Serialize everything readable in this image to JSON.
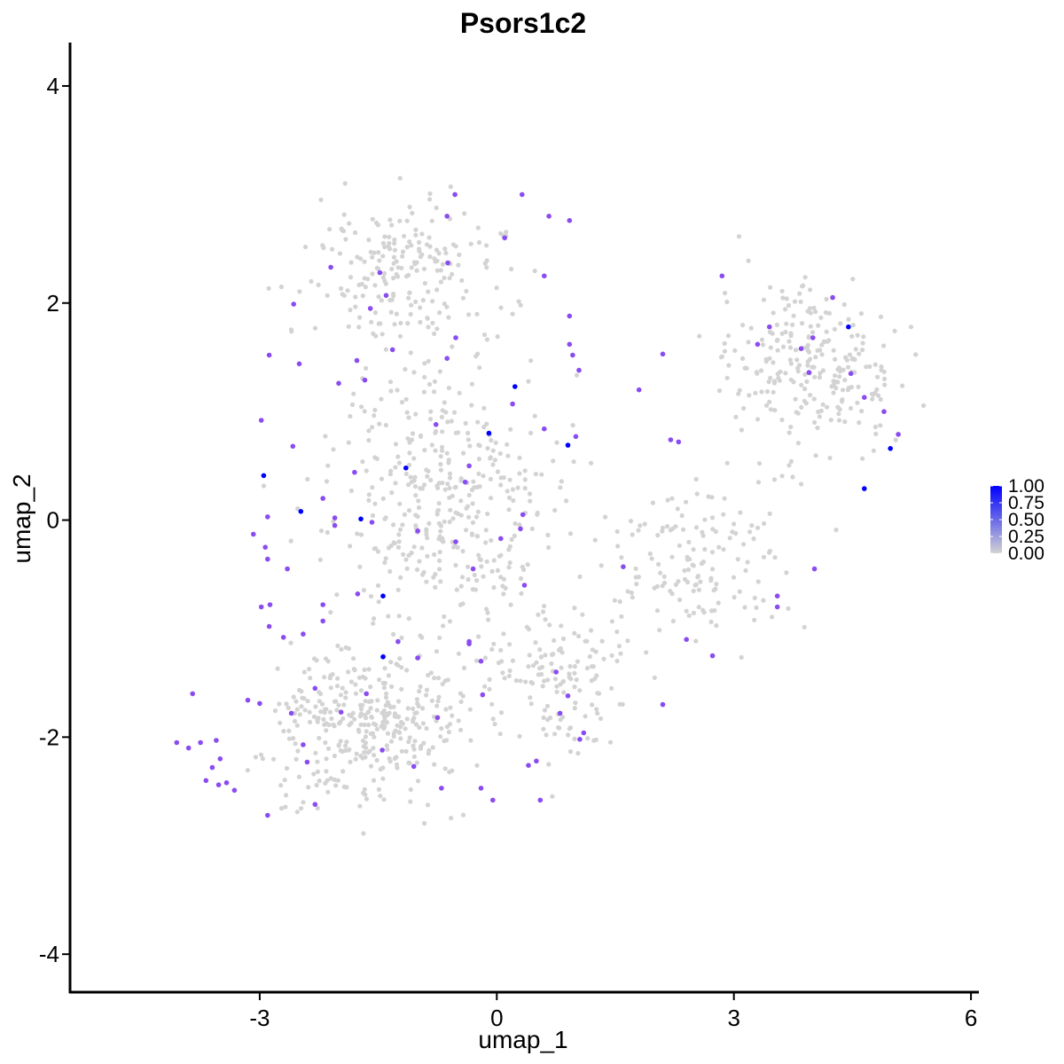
{
  "chart_data": {
    "type": "scatter",
    "title": "Psors1c2",
    "xlabel": "umap_1",
    "ylabel": "umap_2",
    "xlim": [
      -5.4,
      6.1
    ],
    "ylim": [
      -4.35,
      4.4
    ],
    "x_ticks": [
      -3,
      0,
      3,
      6
    ],
    "y_ticks": [
      -4,
      -2,
      0,
      2,
      4
    ],
    "grid": false,
    "legend": {
      "placement": "right",
      "type": "colorbar",
      "labels": [
        "1.00",
        "0.75",
        "0.50",
        "0.25",
        "0.00"
      ],
      "low_color": "#d3d3d3",
      "high_color": "#0000ff"
    },
    "background_point_color": "#d3d3d3",
    "background_point_count": 1500,
    "background_regions": [
      {
        "center": [
          -1.6,
          -1.9
        ],
        "spread": [
          1.2,
          0.65
        ],
        "weight": 0.22
      },
      {
        "center": [
          -0.6,
          0.2
        ],
        "spread": [
          1.3,
          1.2
        ],
        "weight": 0.26
      },
      {
        "center": [
          -1.1,
          2.3
        ],
        "spread": [
          1.1,
          0.6
        ],
        "weight": 0.14
      },
      {
        "center": [
          3.9,
          1.4
        ],
        "spread": [
          1.0,
          0.7
        ],
        "weight": 0.17
      },
      {
        "center": [
          2.5,
          -0.4
        ],
        "spread": [
          1.0,
          0.6
        ],
        "weight": 0.11
      },
      {
        "center": [
          0.8,
          -1.5
        ],
        "spread": [
          0.9,
          0.7
        ],
        "weight": 0.1
      }
    ],
    "expressed_points": [
      {
        "x": 0.23,
        "y": 1.23,
        "value": 1.0
      },
      {
        "x": -0.1,
        "y": 0.8,
        "value": 1.0
      },
      {
        "x": 0.9,
        "y": 0.69,
        "value": 1.0
      },
      {
        "x": -1.15,
        "y": 0.48,
        "value": 0.95
      },
      {
        "x": -2.95,
        "y": 0.41,
        "value": 0.95
      },
      {
        "x": -2.48,
        "y": 0.08,
        "value": 1.0
      },
      {
        "x": -1.72,
        "y": 0.01,
        "value": 1.0
      },
      {
        "x": -1.44,
        "y": -0.7,
        "value": 1.0
      },
      {
        "x": -1.44,
        "y": -1.26,
        "value": 1.0
      },
      {
        "x": 4.45,
        "y": 1.78,
        "value": 1.0
      },
      {
        "x": 4.98,
        "y": 0.66,
        "value": 1.0
      },
      {
        "x": 4.65,
        "y": 0.29,
        "value": 1.0
      },
      {
        "x": -2.1,
        "y": 2.33,
        "value": 0.7
      },
      {
        "x": -1.48,
        "y": 2.28,
        "value": 0.7
      },
      {
        "x": -2.57,
        "y": 1.99,
        "value": 0.7
      },
      {
        "x": -1.6,
        "y": 1.95,
        "value": 0.65
      },
      {
        "x": -1.32,
        "y": 1.57,
        "value": 0.7
      },
      {
        "x": -1.77,
        "y": 1.47,
        "value": 0.7
      },
      {
        "x": -2.5,
        "y": 1.44,
        "value": 0.7
      },
      {
        "x": -2.0,
        "y": 1.26,
        "value": 0.7
      },
      {
        "x": -1.67,
        "y": 1.29,
        "value": 0.7
      },
      {
        "x": -2.88,
        "y": 1.52,
        "value": 0.7
      },
      {
        "x": -2.98,
        "y": 0.92,
        "value": 0.7
      },
      {
        "x": -2.58,
        "y": 0.68,
        "value": 0.7
      },
      {
        "x": -1.4,
        "y": 2.07,
        "value": 0.7
      },
      {
        "x": -0.63,
        "y": 2.8,
        "value": 0.7
      },
      {
        "x": -0.62,
        "y": 2.37,
        "value": 0.7
      },
      {
        "x": -0.53,
        "y": 3.0,
        "value": 0.7
      },
      {
        "x": 0.32,
        "y": 3.0,
        "value": 0.7
      },
      {
        "x": 0.66,
        "y": 2.8,
        "value": 0.7
      },
      {
        "x": 0.92,
        "y": 2.76,
        "value": 0.7
      },
      {
        "x": 0.1,
        "y": 2.6,
        "value": 0.7
      },
      {
        "x": 0.6,
        "y": 2.25,
        "value": 0.7
      },
      {
        "x": 0.92,
        "y": 1.88,
        "value": 0.7
      },
      {
        "x": 0.92,
        "y": 1.62,
        "value": 0.7
      },
      {
        "x": 0.96,
        "y": 1.52,
        "value": 0.7
      },
      {
        "x": 1.04,
        "y": 1.38,
        "value": 0.7
      },
      {
        "x": -0.52,
        "y": 1.68,
        "value": 0.7
      },
      {
        "x": -0.63,
        "y": 1.49,
        "value": 0.7
      },
      {
        "x": 0.2,
        "y": 1.07,
        "value": 0.7
      },
      {
        "x": -0.77,
        "y": 0.88,
        "value": 0.7
      },
      {
        "x": -0.35,
        "y": 0.5,
        "value": 0.7
      },
      {
        "x": -0.4,
        "y": 0.35,
        "value": 0.7
      },
      {
        "x": 0.3,
        "y": -0.08,
        "value": 0.7
      },
      {
        "x": 0.33,
        "y": 0.05,
        "value": 0.7
      },
      {
        "x": 0.05,
        "y": -0.17,
        "value": 0.7
      },
      {
        "x": -0.52,
        "y": -0.2,
        "value": 0.7
      },
      {
        "x": -1.0,
        "y": -0.1,
        "value": 0.7
      },
      {
        "x": -0.3,
        "y": -0.45,
        "value": 0.7
      },
      {
        "x": 0.6,
        "y": 0.84,
        "value": 0.7
      },
      {
        "x": 1.0,
        "y": 0.77,
        "value": 0.7
      },
      {
        "x": 1.8,
        "y": 1.2,
        "value": 0.7
      },
      {
        "x": 2.1,
        "y": 1.53,
        "value": 0.7
      },
      {
        "x": 2.2,
        "y": 0.74,
        "value": 0.7
      },
      {
        "x": 2.3,
        "y": 0.72,
        "value": 0.7
      },
      {
        "x": 2.85,
        "y": 2.25,
        "value": 0.7
      },
      {
        "x": 3.3,
        "y": 1.62,
        "value": 0.7
      },
      {
        "x": 3.45,
        "y": 1.78,
        "value": 0.7
      },
      {
        "x": 3.85,
        "y": 1.58,
        "value": 0.7
      },
      {
        "x": 4.0,
        "y": 1.68,
        "value": 0.7
      },
      {
        "x": 4.25,
        "y": 2.05,
        "value": 0.7
      },
      {
        "x": 3.95,
        "y": 1.36,
        "value": 0.7
      },
      {
        "x": 4.48,
        "y": 1.35,
        "value": 0.7
      },
      {
        "x": 4.65,
        "y": 1.13,
        "value": 0.7
      },
      {
        "x": 4.9,
        "y": 1.0,
        "value": 0.7
      },
      {
        "x": 5.08,
        "y": 0.79,
        "value": 0.7
      },
      {
        "x": 1.6,
        "y": -0.43,
        "value": 0.7
      },
      {
        "x": 2.4,
        "y": -1.1,
        "value": 0.7
      },
      {
        "x": 2.73,
        "y": -1.25,
        "value": 0.7
      },
      {
        "x": 3.55,
        "y": -0.7,
        "value": 0.7
      },
      {
        "x": 3.55,
        "y": -0.8,
        "value": 0.7
      },
      {
        "x": 4.02,
        "y": -0.45,
        "value": 0.7
      },
      {
        "x": 2.1,
        "y": -1.7,
        "value": 0.7
      },
      {
        "x": -2.9,
        "y": 0.03,
        "value": 0.7
      },
      {
        "x": -3.08,
        "y": -0.13,
        "value": 0.7
      },
      {
        "x": -2.93,
        "y": -0.25,
        "value": 0.7
      },
      {
        "x": -2.9,
        "y": -0.36,
        "value": 0.7
      },
      {
        "x": -2.65,
        "y": -0.45,
        "value": 0.7
      },
      {
        "x": -2.2,
        "y": 0.2,
        "value": 0.7
      },
      {
        "x": -1.8,
        "y": 0.44,
        "value": 0.7
      },
      {
        "x": -2.05,
        "y": 0.02,
        "value": 0.7
      },
      {
        "x": -2.05,
        "y": -0.05,
        "value": 0.7
      },
      {
        "x": -1.58,
        "y": -0.02,
        "value": 0.7
      },
      {
        "x": -2.2,
        "y": -0.78,
        "value": 0.7
      },
      {
        "x": -1.76,
        "y": -0.68,
        "value": 0.7
      },
      {
        "x": -2.2,
        "y": -0.93,
        "value": 0.7
      },
      {
        "x": -2.45,
        "y": -1.05,
        "value": 0.7
      },
      {
        "x": -2.7,
        "y": -1.08,
        "value": 0.7
      },
      {
        "x": -2.87,
        "y": -0.78,
        "value": 0.7
      },
      {
        "x": -2.98,
        "y": -0.8,
        "value": 0.7
      },
      {
        "x": -2.88,
        "y": -0.98,
        "value": 0.7
      },
      {
        "x": -1.25,
        "y": -1.12,
        "value": 0.7
      },
      {
        "x": -1.0,
        "y": -1.27,
        "value": 0.7
      },
      {
        "x": -0.2,
        "y": -1.3,
        "value": 0.7
      },
      {
        "x": -0.35,
        "y": -1.12,
        "value": 0.7
      },
      {
        "x": -0.35,
        "y": -1.14,
        "value": 0.7
      },
      {
        "x": 0.35,
        "y": -0.6,
        "value": 0.7
      },
      {
        "x": 0.75,
        "y": -1.4,
        "value": 0.7
      },
      {
        "x": 0.9,
        "y": -1.62,
        "value": 0.7
      },
      {
        "x": 0.8,
        "y": -1.78,
        "value": 0.7
      },
      {
        "x": 1.1,
        "y": -1.96,
        "value": 0.7
      },
      {
        "x": 1.05,
        "y": -2.02,
        "value": 0.7
      },
      {
        "x": -0.18,
        "y": -1.61,
        "value": 0.7
      },
      {
        "x": -0.75,
        "y": -1.82,
        "value": 0.7
      },
      {
        "x": -1.05,
        "y": -2.27,
        "value": 0.7
      },
      {
        "x": -1.65,
        "y": -1.6,
        "value": 0.7
      },
      {
        "x": -1.97,
        "y": -1.77,
        "value": 0.7
      },
      {
        "x": -2.3,
        "y": -1.55,
        "value": 0.7
      },
      {
        "x": -2.6,
        "y": -1.78,
        "value": 0.7
      },
      {
        "x": -2.45,
        "y": -2.07,
        "value": 0.7
      },
      {
        "x": -2.4,
        "y": -2.23,
        "value": 0.7
      },
      {
        "x": -2.3,
        "y": -2.62,
        "value": 0.7
      },
      {
        "x": -3.0,
        "y": -1.69,
        "value": 0.7
      },
      {
        "x": -2.9,
        "y": -2.72,
        "value": 0.7
      },
      {
        "x": -3.85,
        "y": -1.6,
        "value": 0.7
      },
      {
        "x": -4.05,
        "y": -2.05,
        "value": 0.7
      },
      {
        "x": -3.9,
        "y": -2.1,
        "value": 0.7
      },
      {
        "x": -3.75,
        "y": -2.05,
        "value": 0.7
      },
      {
        "x": -3.55,
        "y": -2.03,
        "value": 0.7
      },
      {
        "x": -3.5,
        "y": -2.2,
        "value": 0.7
      },
      {
        "x": -3.6,
        "y": -2.28,
        "value": 0.7
      },
      {
        "x": -3.52,
        "y": -2.44,
        "value": 0.7
      },
      {
        "x": -3.42,
        "y": -2.42,
        "value": 0.7
      },
      {
        "x": -3.32,
        "y": -2.49,
        "value": 0.7
      },
      {
        "x": -3.68,
        "y": -2.4,
        "value": 0.7
      },
      {
        "x": -1.45,
        "y": -2.12,
        "value": 0.7
      },
      {
        "x": -0.7,
        "y": -2.47,
        "value": 0.7
      },
      {
        "x": 0.4,
        "y": -2.26,
        "value": 0.7
      },
      {
        "x": 0.5,
        "y": -2.22,
        "value": 0.7
      },
      {
        "x": 0.55,
        "y": -2.58,
        "value": 0.7
      },
      {
        "x": -0.05,
        "y": -2.58,
        "value": 0.7
      },
      {
        "x": -0.2,
        "y": -2.47,
        "value": 0.7
      },
      {
        "x": -3.15,
        "y": -1.66,
        "value": 0.7
      }
    ]
  }
}
